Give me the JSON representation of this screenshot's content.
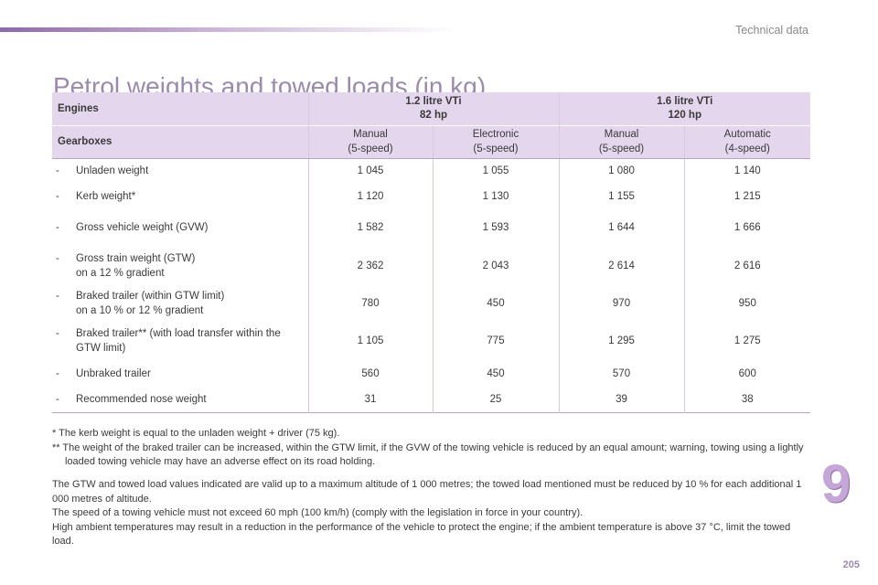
{
  "header": {
    "section_label": "Technical data",
    "title": "Petrol weights and towed loads (in kg)"
  },
  "table": {
    "engines_label": "Engines",
    "gearboxes_label": "Gearboxes",
    "engines": [
      {
        "line1": "1.2 litre VTi",
        "line2": "82 hp"
      },
      {
        "line1": "1.6 litre VTi",
        "line2": "120 hp"
      }
    ],
    "gearboxes": [
      {
        "line1": "Manual",
        "line2": "(5-speed)"
      },
      {
        "line1": "Electronic",
        "line2": "(5-speed)"
      },
      {
        "line1": "Manual",
        "line2": "(5-speed)"
      },
      {
        "line1": "Automatic",
        "line2": "(4-speed)"
      }
    ],
    "rows": [
      {
        "dash": "-",
        "label": "Unladen weight",
        "v": [
          "1 045",
          "1 055",
          "1 080",
          "1 140"
        ]
      },
      {
        "dash": "-",
        "label": "Kerb weight*",
        "v": [
          "1 120",
          "1 130",
          "1 155",
          "1 215"
        ]
      },
      {
        "dash": "-",
        "label": "Gross vehicle weight (GVW)",
        "v": [
          "1 582",
          "1 593",
          "1 644",
          "1 666"
        ]
      },
      {
        "dash": "-",
        "label": "Gross train weight (GTW)",
        "label2": "on a 12 % gradient",
        "v": [
          "2 362",
          "2 043",
          "2 614",
          "2 616"
        ]
      },
      {
        "dash": "-",
        "label": "Braked trailer (within GTW limit)",
        "label2": "on a 10 % or 12 % gradient",
        "v": [
          "780",
          "450",
          "970",
          "950"
        ]
      },
      {
        "dash": "-",
        "label": "Braked trailer** (with load transfer within the",
        "label2": "GTW limit)",
        "v": [
          "1 105",
          "775",
          "1 295",
          "1 275"
        ]
      },
      {
        "dash": "-",
        "label": "Unbraked trailer",
        "v": [
          "560",
          "450",
          "570",
          "600"
        ]
      },
      {
        "dash": "-",
        "label": "Recommended nose weight",
        "v": [
          "31",
          "25",
          "39",
          "38"
        ]
      }
    ]
  },
  "footnotes": {
    "note1": "* The kerb weight is equal to the unladen weight + driver (75 kg).",
    "note2": "** The weight of the braked trailer can be increased, within the GTW limit, if the GVW of the towing vehicle is reduced by an equal amount; warning, towing using a lightly loaded towing vehicle may have an adverse effect on its road holding."
  },
  "notes": {
    "p1": "The GTW and towed load values indicated are valid up to a maximum altitude of 1 000 metres; the towed load mentioned must be reduced by 10 % for each additional 1 000 metres of altitude.",
    "p2": "The speed of a towing vehicle must not exceed 60 mph (100 km/h) (comply with the legislation in force in your country).",
    "p3": "High ambient temperatures may result in a reduction in the performance of the vehicle to protect the engine; if the ambient temperature is above 37 °C, limit the towed load."
  },
  "chapter_number": "9",
  "page_number": "205",
  "colors": {
    "accent": "#9b8aae",
    "header_bg": "#e4d6ec",
    "chapter": "#c4a7d6"
  }
}
